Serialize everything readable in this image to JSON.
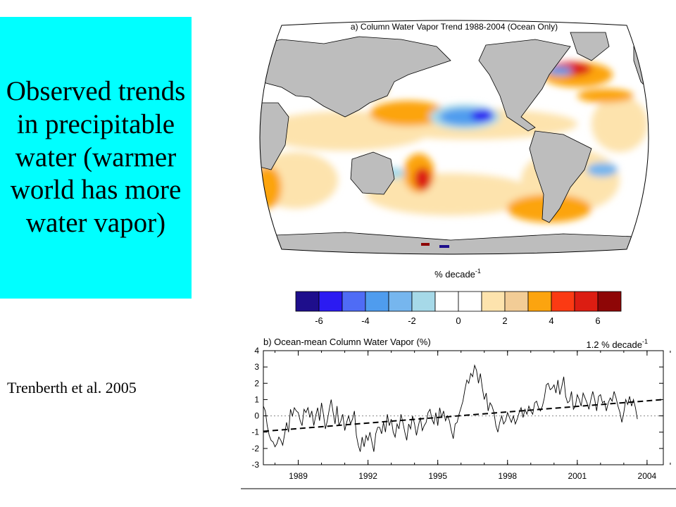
{
  "slide": {
    "title": "Observed trends in precipitable water (warmer world has more water vapor)",
    "citation": "Trenberth et al. 2005"
  },
  "colors": {
    "title_box": "#00ffff",
    "land": "#bdbdbd",
    "trend_line": "#000000",
    "zero_line": "#888888"
  },
  "chart_data": [
    {
      "type": "heatmap",
      "title": "a) Column Water Vapor Trend 1988-2004 (Ocean Only)",
      "description": "Global map (Robinson-type projection), ocean-only trends; land shaded grey",
      "colorbar": {
        "label": "% decade",
        "label_sup": "-1",
        "bins": 14,
        "tick_labels": [
          "-6",
          "-4",
          "-2",
          "0",
          "2",
          "4",
          "6"
        ],
        "colors": [
          "#1e0e8c",
          "#2b1bf2",
          "#4f6cf5",
          "#4f9cee",
          "#76b6ee",
          "#a6d9e8",
          "#ffffff",
          "#ffffff",
          "#fde3ad",
          "#f2cc96",
          "#fca40f",
          "#fb3a13",
          "#dc1d12",
          "#8e0606"
        ]
      },
      "features": [
        {
          "name": "negative anomaly north Pacific",
          "sign": "negative"
        },
        {
          "name": "positive anomaly western tropical Pacific",
          "sign": "positive"
        },
        {
          "name": "positive anomaly southwest Pacific",
          "sign": "positive"
        },
        {
          "name": "positive anomaly north Atlantic",
          "sign": "positive"
        }
      ]
    },
    {
      "type": "line",
      "title": "b) Ocean-mean Column Water Vapor (%)",
      "annotation": "1.2 % decade",
      "annotation_sup": "-1",
      "ylim": [
        -3,
        4
      ],
      "yticks": [
        "-3",
        "-2",
        "-1",
        "0",
        "1",
        "2",
        "3",
        "4"
      ],
      "xlim": [
        1988.0,
        2005.2
      ],
      "xticks": [
        "1989",
        "1992",
        "1995",
        "1998",
        "2001",
        "2004"
      ],
      "trend": {
        "start": [
          1988.0,
          -0.95
        ],
        "end": [
          2005.2,
          1.0
        ]
      },
      "zero_line": "dotted",
      "series": [
        {
          "x_start": 1988.0,
          "step_months": 1,
          "values": [
            0.6,
            0.3,
            -0.6,
            -1.2,
            -1.5,
            -1.6,
            -1.9,
            -1.7,
            -1.3,
            -1.5,
            -1.8,
            -1.1,
            -0.4,
            -1.0,
            0.4,
            0.0,
            0.5,
            0.3,
            0.2,
            -0.3,
            -0.6,
            0.4,
            0.2,
            0.5,
            -0.1,
            0.3,
            -0.6,
            0.0,
            0.5,
            -0.3,
            0.8,
            0.1,
            -0.8,
            -0.3,
            0.4,
            1.0,
            0.2,
            -0.5,
            0.6,
            -0.6,
            -0.3,
            0.1,
            -0.9,
            -0.4,
            0.0,
            -0.5,
            -0.2,
            0.3,
            -1.2,
            -1.8,
            -2.2,
            -1.3,
            -1.9,
            -1.2,
            -1.5,
            -1.0,
            -1.6,
            -2.2,
            -1.1,
            -0.7,
            -0.7,
            -1.1,
            -0.4,
            -1.0,
            0.1,
            -0.6,
            -0.2,
            -1.0,
            -1.3,
            -0.5,
            -0.8,
            0.1,
            -0.4,
            -1.0,
            -1.5,
            -0.5,
            -0.8,
            0.0,
            -0.5,
            -1.2,
            -0.6,
            -0.1,
            -0.9,
            -0.6,
            -0.4,
            0.2,
            0.4,
            -0.2,
            -0.5,
            0.2,
            -0.6,
            0.5,
            -0.1,
            0.3,
            -0.3,
            0.0,
            -0.3,
            -0.9,
            -1.4,
            -0.5,
            -0.4,
            0.1,
            0.5,
            0.9,
            1.6,
            2.2,
            2.0,
            2.6,
            2.4,
            3.1,
            2.8,
            2.0,
            2.6,
            1.7,
            1.0,
            1.4,
            0.3,
            0.8,
            0.6,
            0.2,
            -0.6,
            -1.0,
            -0.4,
            0.0,
            -0.5,
            -0.3,
            0.2,
            -0.1,
            -0.4,
            0.0,
            -0.5,
            -0.2,
            0.2,
            0.5,
            -0.1,
            0.4,
            0.1,
            0.6,
            0.3,
            0.1,
            0.8,
            0.9,
            0.5,
            0.3,
            0.6,
            1.1,
            1.9,
            2.0,
            1.6,
            1.7,
            1.9,
            1.4,
            2.2,
            1.3,
            1.8,
            2.4,
            1.2,
            0.8,
            0.9,
            1.5,
            0.4,
            0.6,
            1.3,
            1.0,
            0.6,
            1.4,
            1.1,
            0.8,
            0.4,
            1.0,
            1.5,
            1.0,
            0.3,
            1.2,
            1.3,
            0.8,
            0.9,
            0.3,
            0.8,
            1.1,
            0.9,
            1.5,
            1.1,
            0.6,
            0.2,
            -0.4,
            0.2,
            1.0,
            0.7,
            1.2,
            0.6,
            1.0,
            0.5,
            -0.2
          ]
        }
      ]
    }
  ]
}
